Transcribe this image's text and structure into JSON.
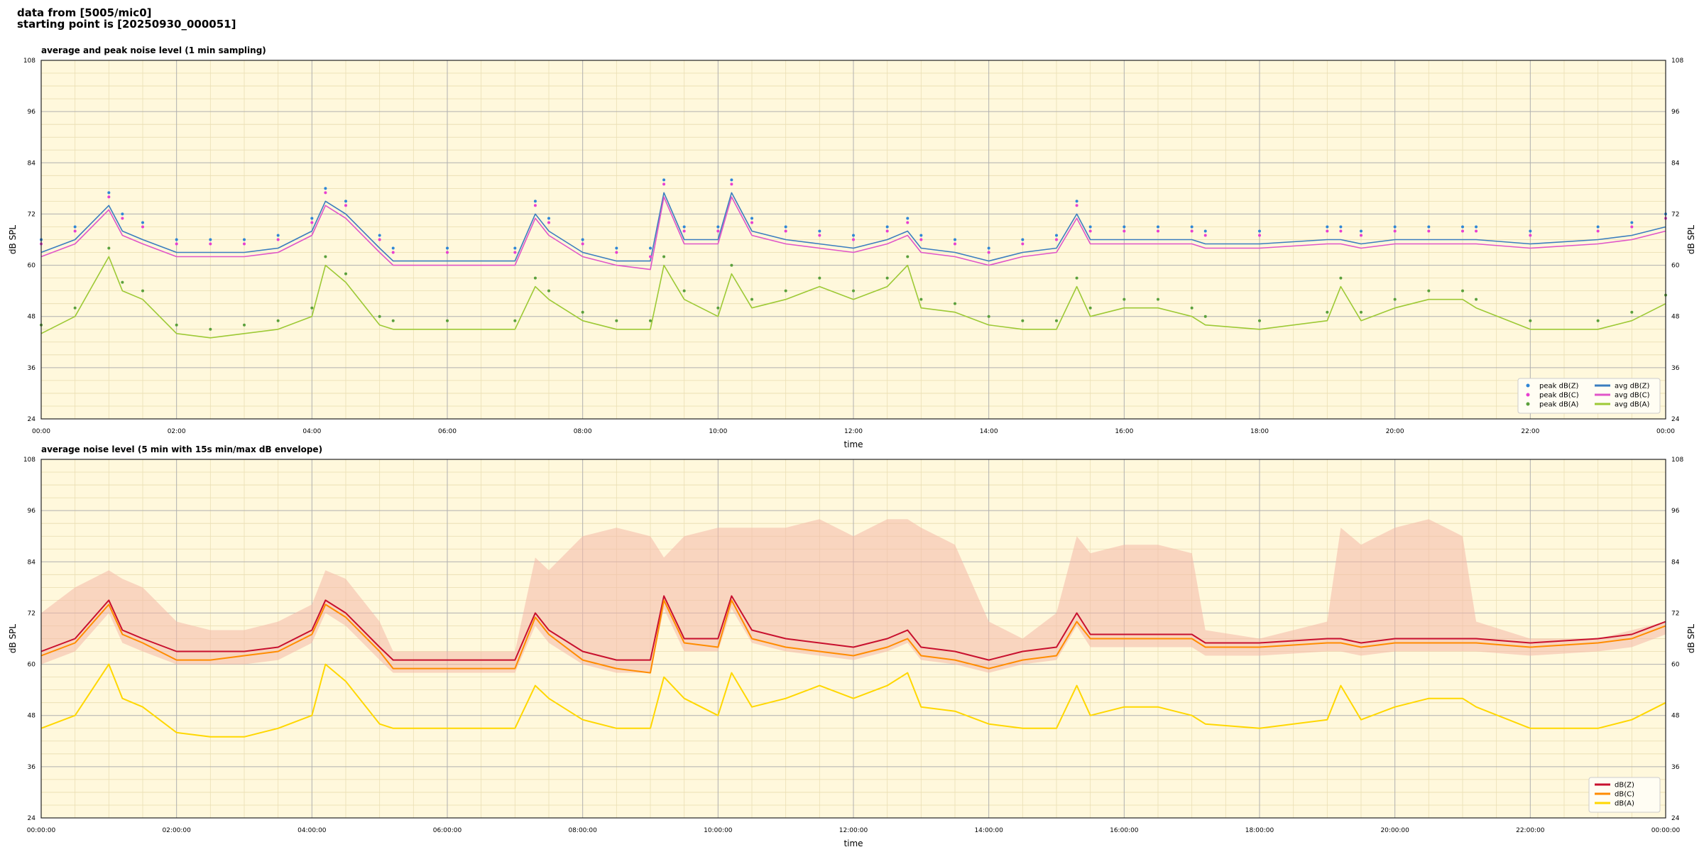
{
  "header": {
    "line1": "data from [5005/mic0]",
    "line2": "starting point is [20250930_000051]"
  },
  "chart_data": [
    {
      "type": "line",
      "title": "average and peak noise level (1 min sampling)",
      "xlabel": "time",
      "ylabel": "dB SPL",
      "ylim": [
        24,
        108
      ],
      "yticks": [
        24,
        36,
        48,
        60,
        72,
        84,
        96,
        108
      ],
      "xlim": [
        0,
        24
      ],
      "xtick_labels": [
        "00:00",
        "02:00",
        "04:00",
        "06:00",
        "08:00",
        "10:00",
        "12:00",
        "14:00",
        "16:00",
        "18:00",
        "20:00",
        "22:00",
        "00:00"
      ],
      "grid": true,
      "legend_position": "bottom-right",
      "x_hours": [
        0,
        0.5,
        1,
        1.2,
        1.5,
        2,
        2.5,
        3,
        3.5,
        4,
        4.2,
        4.5,
        5,
        5.2,
        6,
        7,
        7.3,
        7.5,
        8,
        8.5,
        9,
        9.2,
        9.5,
        10,
        10.2,
        10.5,
        11,
        11.5,
        12,
        12.5,
        12.8,
        13,
        13.5,
        14,
        14.5,
        15,
        15.3,
        15.5,
        16,
        16.5,
        17,
        17.2,
        18,
        19,
        19.2,
        19.5,
        20,
        20.5,
        21,
        21.2,
        22,
        23,
        23.5,
        24
      ],
      "series": [
        {
          "name": "avg dB(Z)",
          "color": "#3a7dbf",
          "values": [
            63,
            66,
            74,
            68,
            66,
            63,
            63,
            63,
            64,
            68,
            75,
            72,
            64,
            61,
            61,
            61,
            72,
            68,
            63,
            61,
            61,
            77,
            66,
            66,
            77,
            68,
            66,
            65,
            64,
            66,
            68,
            64,
            63,
            61,
            63,
            64,
            72,
            66,
            66,
            66,
            66,
            65,
            65,
            66,
            66,
            65,
            66,
            66,
            66,
            66,
            65,
            66,
            67,
            69
          ]
        },
        {
          "name": "avg dB(C)",
          "color": "#e055c8",
          "values": [
            62,
            65,
            73,
            67,
            65,
            62,
            62,
            62,
            63,
            67,
            74,
            71,
            63,
            60,
            60,
            60,
            71,
            67,
            62,
            60,
            59,
            76,
            65,
            65,
            76,
            67,
            65,
            64,
            63,
            65,
            67,
            63,
            62,
            60,
            62,
            63,
            71,
            65,
            65,
            65,
            65,
            64,
            64,
            65,
            65,
            64,
            65,
            65,
            65,
            65,
            64,
            65,
            66,
            68
          ]
        },
        {
          "name": "avg dB(A)",
          "color": "#9dc935",
          "values": [
            44,
            48,
            62,
            54,
            52,
            44,
            43,
            44,
            45,
            48,
            60,
            56,
            46,
            45,
            45,
            45,
            55,
            52,
            47,
            45,
            45,
            60,
            52,
            48,
            58,
            50,
            52,
            55,
            52,
            55,
            60,
            50,
            49,
            46,
            45,
            45,
            55,
            48,
            50,
            50,
            48,
            46,
            45,
            47,
            55,
            47,
            50,
            52,
            52,
            50,
            45,
            45,
            47,
            51
          ]
        },
        {
          "name": "peak dB(Z)",
          "color": "#2f86d6",
          "values": [
            66,
            69,
            77,
            72,
            70,
            66,
            66,
            66,
            67,
            71,
            78,
            75,
            67,
            64,
            64,
            64,
            75,
            71,
            66,
            64,
            64,
            80,
            69,
            69,
            80,
            71,
            69,
            68,
            67,
            69,
            71,
            67,
            66,
            64,
            66,
            67,
            75,
            69,
            69,
            69,
            69,
            68,
            68,
            69,
            69,
            68,
            69,
            69,
            69,
            69,
            68,
            69,
            70,
            72
          ]
        },
        {
          "name": "peak dB(C)",
          "color": "#e83fd0",
          "values": [
            65,
            68,
            76,
            71,
            69,
            65,
            65,
            65,
            66,
            70,
            77,
            74,
            66,
            63,
            63,
            63,
            74,
            70,
            65,
            63,
            62,
            79,
            68,
            68,
            79,
            70,
            68,
            67,
            66,
            68,
            70,
            66,
            65,
            63,
            65,
            66,
            74,
            68,
            68,
            68,
            68,
            67,
            67,
            68,
            68,
            67,
            68,
            68,
            68,
            68,
            67,
            68,
            69,
            71
          ]
        },
        {
          "name": "peak dB(A)",
          "color": "#5aa03c",
          "values": [
            46,
            50,
            64,
            56,
            54,
            46,
            45,
            46,
            47,
            50,
            62,
            58,
            48,
            47,
            47,
            47,
            57,
            54,
            49,
            47,
            47,
            62,
            54,
            50,
            60,
            52,
            54,
            57,
            54,
            57,
            62,
            52,
            51,
            48,
            47,
            47,
            57,
            50,
            52,
            52,
            50,
            48,
            47,
            49,
            57,
            49,
            52,
            54,
            54,
            52,
            47,
            47,
            49,
            53
          ]
        }
      ]
    },
    {
      "type": "line",
      "title": "average noise level (5 min with 15s min/max dB envelope)",
      "xlabel": "time",
      "ylabel": "dB SPL",
      "ylim": [
        24,
        108
      ],
      "yticks": [
        24,
        36,
        48,
        60,
        72,
        84,
        96,
        108
      ],
      "xlim": [
        0,
        24
      ],
      "xtick_labels": [
        "00:00:00",
        "02:00:00",
        "04:00:00",
        "06:00:00",
        "08:00:00",
        "10:00:00",
        "12:00:00",
        "14:00:00",
        "16:00:00",
        "18:00:00",
        "20:00:00",
        "22:00:00",
        "00:00:00"
      ],
      "grid": true,
      "legend_position": "bottom-right",
      "x_hours": [
        0,
        0.5,
        1,
        1.2,
        1.5,
        2,
        2.5,
        3,
        3.5,
        4,
        4.2,
        4.5,
        5,
        5.2,
        6,
        7,
        7.3,
        7.5,
        8,
        8.5,
        9,
        9.2,
        9.5,
        10,
        10.2,
        10.5,
        11,
        11.5,
        12,
        12.5,
        12.8,
        13,
        13.5,
        14,
        14.5,
        15,
        15.3,
        15.5,
        16,
        16.5,
        17,
        17.2,
        18,
        19,
        19.2,
        19.5,
        20,
        20.5,
        21,
        21.2,
        22,
        23,
        23.5,
        24
      ],
      "envelope": {
        "color": "#f4b8a8",
        "max": [
          72,
          78,
          82,
          80,
          78,
          70,
          68,
          68,
          70,
          74,
          82,
          80,
          70,
          63,
          63,
          63,
          85,
          82,
          90,
          92,
          90,
          85,
          90,
          92,
          92,
          92,
          92,
          94,
          90,
          94,
          94,
          92,
          88,
          70,
          66,
          72,
          90,
          86,
          88,
          88,
          86,
          68,
          66,
          70,
          92,
          88,
          92,
          94,
          90,
          70,
          66,
          66,
          68,
          70
        ]
      },
      "series": [
        {
          "name": "dB(Z)",
          "color": "#c8102e",
          "values": [
            63,
            66,
            75,
            68,
            66,
            63,
            63,
            63,
            64,
            68,
            75,
            72,
            64,
            61,
            61,
            61,
            72,
            68,
            63,
            61,
            61,
            76,
            66,
            66,
            76,
            68,
            66,
            65,
            64,
            66,
            68,
            64,
            63,
            61,
            63,
            64,
            72,
            67,
            67,
            67,
            67,
            65,
            65,
            66,
            66,
            65,
            66,
            66,
            66,
            66,
            65,
            66,
            67,
            70
          ]
        },
        {
          "name": "dB(C)",
          "color": "#ff8c00",
          "values": [
            62,
            65,
            74,
            67,
            65,
            61,
            61,
            62,
            63,
            67,
            74,
            71,
            63,
            59,
            59,
            59,
            71,
            67,
            61,
            59,
            58,
            75,
            65,
            64,
            75,
            66,
            64,
            63,
            62,
            64,
            66,
            62,
            61,
            59,
            61,
            62,
            70,
            66,
            66,
            66,
            66,
            64,
            64,
            65,
            65,
            64,
            65,
            65,
            65,
            65,
            64,
            65,
            66,
            69
          ]
        },
        {
          "name": "dB(A)",
          "color": "#ffd700",
          "values": [
            45,
            48,
            60,
            52,
            50,
            44,
            43,
            43,
            45,
            48,
            60,
            56,
            46,
            45,
            45,
            45,
            55,
            52,
            47,
            45,
            45,
            57,
            52,
            48,
            58,
            50,
            52,
            55,
            52,
            55,
            58,
            50,
            49,
            46,
            45,
            45,
            55,
            48,
            50,
            50,
            48,
            46,
            45,
            47,
            55,
            47,
            50,
            52,
            52,
            50,
            45,
            45,
            47,
            51
          ]
        }
      ]
    }
  ]
}
